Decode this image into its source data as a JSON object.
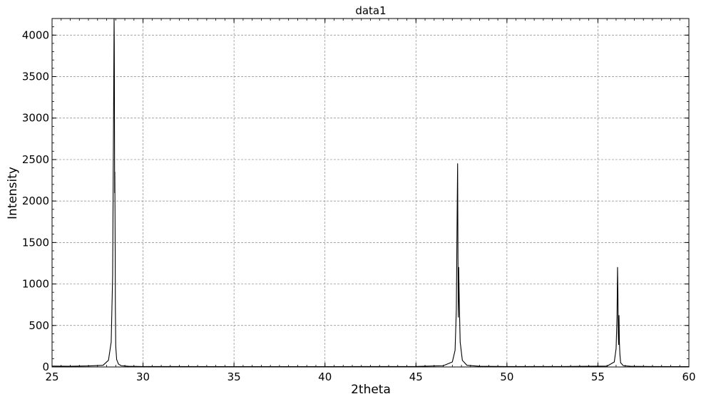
{
  "chart_data": {
    "type": "line",
    "title": "data1",
    "xlabel": "2theta",
    "ylabel": "Intensity",
    "xlim": [
      25,
      60
    ],
    "ylim": [
      0,
      4200
    ],
    "x_ticks": [
      25,
      30,
      35,
      40,
      45,
      50,
      55,
      60
    ],
    "y_ticks": [
      0,
      500,
      1000,
      1500,
      2000,
      2500,
      3000,
      3500,
      4000
    ],
    "x_minor_step": 0.5,
    "y_minor_step": 100,
    "grid": true,
    "line_color": "#000000",
    "grid_color": "#888888",
    "series": [
      {
        "x": [
          25.0,
          26.0,
          27.0,
          27.8,
          28.1,
          28.25,
          28.33,
          28.38,
          28.41,
          28.42,
          28.44,
          28.45,
          28.47,
          28.48,
          28.5,
          28.55,
          28.65,
          28.8,
          29.2,
          30.0,
          35.0,
          40.0,
          45.0,
          46.5,
          47.0,
          47.15,
          47.22,
          47.27,
          47.29,
          47.31,
          47.33,
          47.35,
          47.38,
          47.43,
          47.55,
          47.8,
          48.5,
          50.0,
          53.0,
          55.5,
          55.9,
          56.0,
          56.05,
          56.08,
          56.1,
          56.12,
          56.14,
          56.16,
          56.18,
          56.21,
          56.25,
          56.4,
          56.8,
          58.0,
          60.0
        ],
        "y": [
          10,
          8,
          12,
          20,
          80,
          300,
          1100,
          3000,
          4200,
          3900,
          2100,
          2350,
          1400,
          700,
          250,
          90,
          35,
          15,
          8,
          5,
          4,
          4,
          6,
          15,
          60,
          200,
          700,
          2000,
          2450,
          1300,
          600,
          1200,
          800,
          300,
          80,
          20,
          8,
          5,
          5,
          10,
          60,
          220,
          600,
          1200,
          900,
          400,
          270,
          620,
          300,
          150,
          50,
          15,
          8,
          5,
          4
        ]
      }
    ]
  }
}
